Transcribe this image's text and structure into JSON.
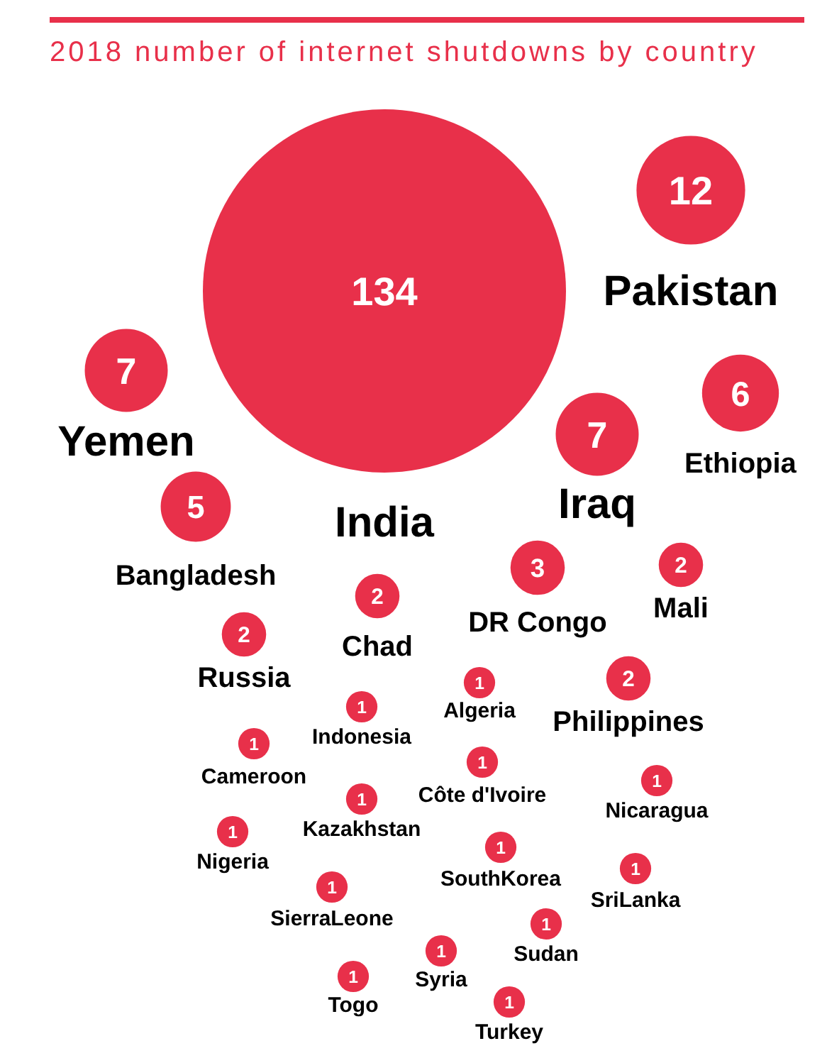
{
  "chart_data": {
    "type": "other",
    "title": "2018 number of internet shutdowns by country",
    "color": "#e8304a",
    "data_labels": true,
    "categories": [
      "Pakistan",
      "Yemen",
      "India",
      "Ethiopia",
      "Iraq",
      "Bangladesh",
      "Chad",
      "DR Congo",
      "Mali",
      "Russia",
      "Algeria",
      "Philippines",
      "Indonesia",
      "Cameroon",
      "Côte d'Ivoire",
      "Nicaragua",
      "Kazakhstan",
      "Nigeria",
      "SouthKorea",
      "SriLanka",
      "SierraLeone",
      "Sudan",
      "Syria",
      "Togo",
      "Turkey"
    ],
    "values": [
      12,
      7,
      134,
      6,
      7,
      5,
      2,
      3,
      2,
      2,
      1,
      2,
      1,
      1,
      1,
      1,
      1,
      1,
      1,
      1,
      1,
      1,
      1,
      1,
      1
    ]
  }
}
